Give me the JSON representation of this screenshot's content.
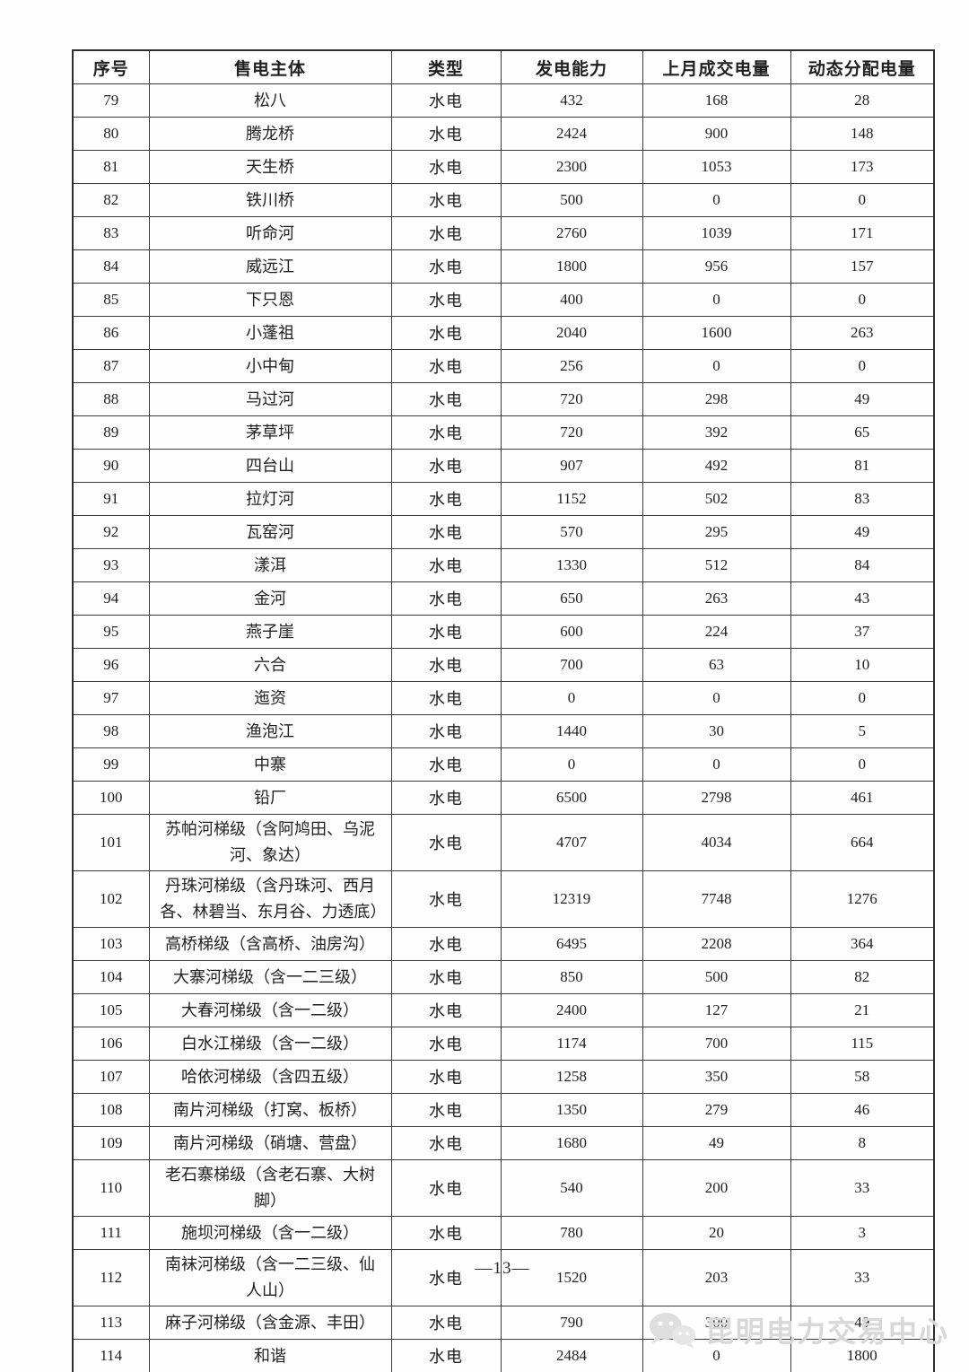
{
  "document": {
    "page_number": "—13—"
  },
  "table": {
    "headers": [
      "序号",
      "售电主体",
      "类型",
      "发电能力",
      "上月成交电量",
      "动态分配电量"
    ],
    "rows": [
      [
        "79",
        "松八",
        "水电",
        "432",
        "168",
        "28"
      ],
      [
        "80",
        "腾龙桥",
        "水电",
        "2424",
        "900",
        "148"
      ],
      [
        "81",
        "天生桥",
        "水电",
        "2300",
        "1053",
        "173"
      ],
      [
        "82",
        "铁川桥",
        "水电",
        "500",
        "0",
        "0"
      ],
      [
        "83",
        "听命河",
        "水电",
        "2760",
        "1039",
        "171"
      ],
      [
        "84",
        "威远江",
        "水电",
        "1800",
        "956",
        "157"
      ],
      [
        "85",
        "下只恩",
        "水电",
        "400",
        "0",
        "0"
      ],
      [
        "86",
        "小蓬祖",
        "水电",
        "2040",
        "1600",
        "263"
      ],
      [
        "87",
        "小中甸",
        "水电",
        "256",
        "0",
        "0"
      ],
      [
        "88",
        "马过河",
        "水电",
        "720",
        "298",
        "49"
      ],
      [
        "89",
        "茅草坪",
        "水电",
        "720",
        "392",
        "65"
      ],
      [
        "90",
        "四台山",
        "水电",
        "907",
        "492",
        "81"
      ],
      [
        "91",
        "拉灯河",
        "水电",
        "1152",
        "502",
        "83"
      ],
      [
        "92",
        "瓦窑河",
        "水电",
        "570",
        "295",
        "49"
      ],
      [
        "93",
        "漾洱",
        "水电",
        "1330",
        "512",
        "84"
      ],
      [
        "94",
        "金河",
        "水电",
        "650",
        "263",
        "43"
      ],
      [
        "95",
        "燕子崖",
        "水电",
        "600",
        "224",
        "37"
      ],
      [
        "96",
        "六合",
        "水电",
        "700",
        "63",
        "10"
      ],
      [
        "97",
        "迤资",
        "水电",
        "0",
        "0",
        "0"
      ],
      [
        "98",
        "渔泡江",
        "水电",
        "1440",
        "30",
        "5"
      ],
      [
        "99",
        "中寨",
        "水电",
        "0",
        "0",
        "0"
      ],
      [
        "100",
        "铅厂",
        "水电",
        "6500",
        "2798",
        "461"
      ],
      [
        "101",
        "苏帕河梯级（含阿鸠田、乌泥河、象达）",
        "水电",
        "4707",
        "4034",
        "664"
      ],
      [
        "102",
        "丹珠河梯级（含丹珠河、西月各、林碧当、东月谷、力透底）",
        "水电",
        "12319",
        "7748",
        "1276"
      ],
      [
        "103",
        "高桥梯级（含高桥、油房沟）",
        "水电",
        "6495",
        "2208",
        "364"
      ],
      [
        "104",
        "大寨河梯级（含一二三级）",
        "水电",
        "850",
        "500",
        "82"
      ],
      [
        "105",
        "大春河梯级（含一二级）",
        "水电",
        "2400",
        "127",
        "21"
      ],
      [
        "106",
        "白水江梯级（含一二级）",
        "水电",
        "1174",
        "700",
        "115"
      ],
      [
        "107",
        "哈依河梯级（含四五级）",
        "水电",
        "1258",
        "350",
        "58"
      ],
      [
        "108",
        "南片河梯级（打窝、板桥）",
        "水电",
        "1350",
        "279",
        "46"
      ],
      [
        "109",
        "南片河梯级（硝塘、营盘）",
        "水电",
        "1680",
        "49",
        "8"
      ],
      [
        "110",
        "老石寨梯级（含老石寨、大树脚）",
        "水电",
        "540",
        "200",
        "33"
      ],
      [
        "111",
        "施坝河梯级（含一二级）",
        "水电",
        "780",
        "20",
        "3"
      ],
      [
        "112",
        "南袜河梯级（含一二三级、仙人山）",
        "水电",
        "1520",
        "203",
        "33"
      ],
      [
        "113",
        "麻子河梯级（含金源、丰田）",
        "水电",
        "790",
        "300",
        "49"
      ],
      [
        "114",
        "和谐",
        "水电",
        "2484",
        "0",
        "1800"
      ]
    ]
  },
  "watermark": {
    "icon": "wechat-icon",
    "text": "昆明电力交易中心",
    "color": "#d8d8d8"
  },
  "colors": {
    "page_background": "#fefefe",
    "table_border": "#3c3c3c",
    "text": "#1f1f1f"
  }
}
